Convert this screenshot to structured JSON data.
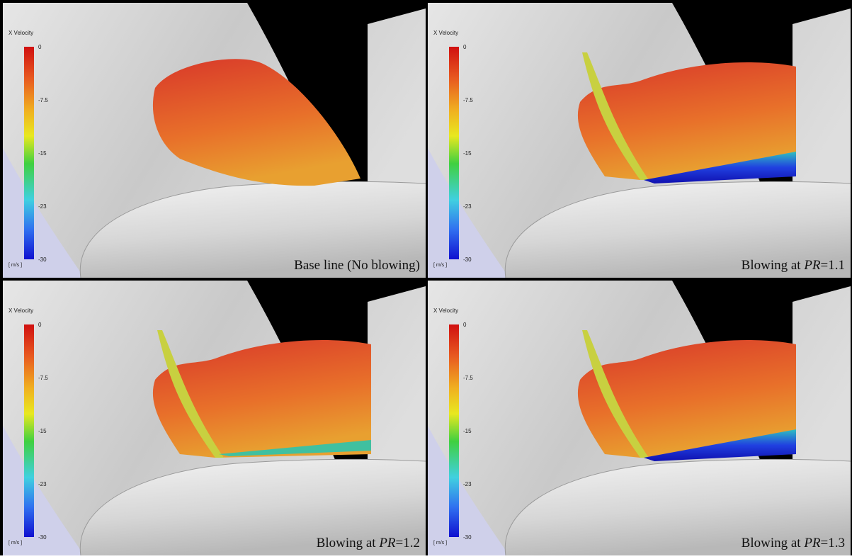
{
  "panels": [
    {
      "legend": {
        "title": "X Velocity",
        "ticks": [
          "0",
          "-7.5",
          "-15",
          "-23",
          "-30"
        ],
        "unit": "[ m/s ]"
      },
      "caption": [
        {
          "text": "Base line (No blowing)"
        }
      ]
    },
    {
      "legend": {
        "title": "X Velocity",
        "ticks": [
          "0",
          "-7.5",
          "-15",
          "-23",
          "-30"
        ],
        "unit": "[ m/s ]"
      },
      "caption": [
        {
          "text": "Blowing at "
        },
        {
          "text": "PR",
          "italic": true
        },
        {
          "text": "=1.1"
        }
      ]
    },
    {
      "legend": {
        "title": "X Velocity",
        "ticks": [
          "0",
          "-7.5",
          "-15",
          "-23",
          "-30"
        ],
        "unit": "[ m/s ]"
      },
      "caption": [
        {
          "text": "Blowing at "
        },
        {
          "text": "PR",
          "italic": true
        },
        {
          "text": "=1.2"
        }
      ]
    },
    {
      "legend": {
        "title": "X Velocity",
        "ticks": [
          "0",
          "-7.5",
          "-15",
          "-23",
          "-30"
        ],
        "unit": "[ m/s ]"
      },
      "caption": [
        {
          "text": "Blowing at "
        },
        {
          "text": "PR",
          "italic": true
        },
        {
          "text": "=1.3"
        }
      ]
    }
  ]
}
